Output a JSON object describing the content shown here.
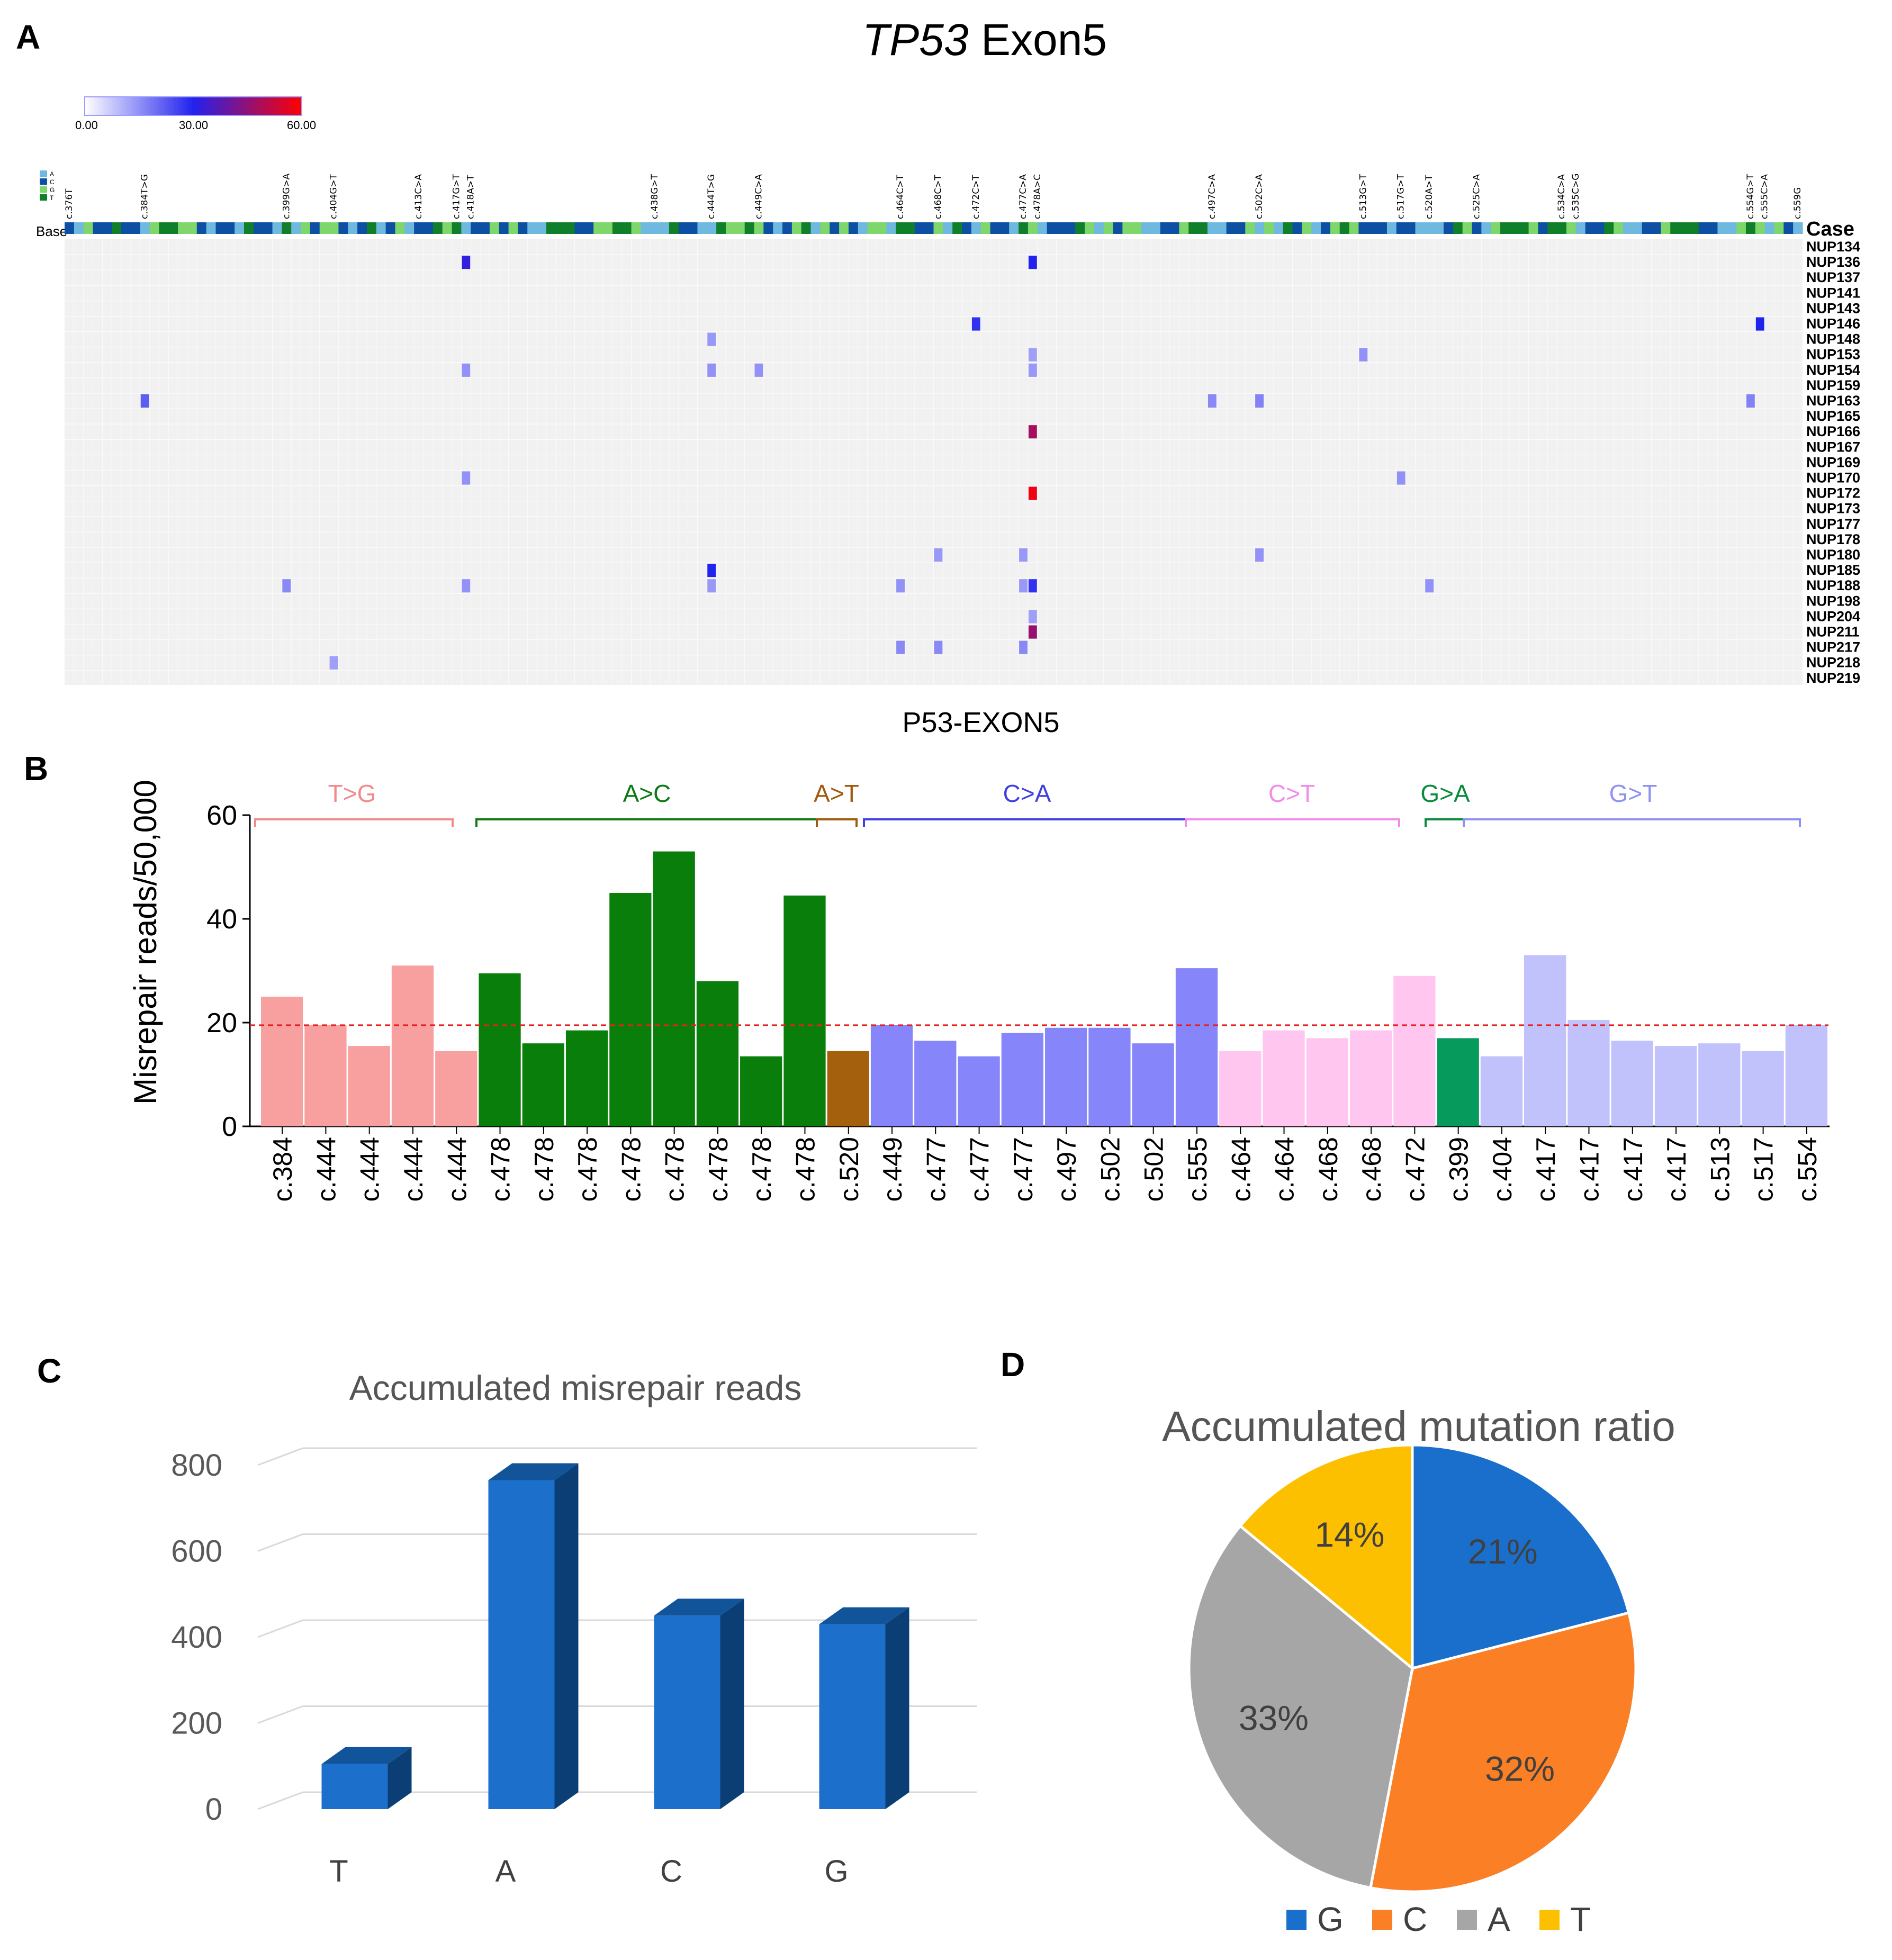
{
  "panels": {
    "A": {
      "letter": "A",
      "title_gene": "TP53",
      "title_rest": " Exon5",
      "xlabel": "P53-EXON5",
      "colorbar": {
        "min_label": "0.00",
        "mid_label": "30.00",
        "max_label": "60.00",
        "colors": [
          "#ffffff",
          "#2222ee",
          "#ff0000"
        ]
      },
      "base_legend": [
        {
          "label": "A",
          "color": "#6fb8df"
        },
        {
          "label": "C",
          "color": "#0d4fa3"
        },
        {
          "label": "G",
          "color": "#7fd66a"
        },
        {
          "label": "T",
          "color": "#0f7f2a"
        }
      ],
      "base_row_label": "Base",
      "case_header": "Case",
      "mutation_labels": [
        "c.376T",
        "c.384T>G",
        "c.399G>A",
        "c.404G>T",
        "c.413C>A",
        "c.417G>T",
        "c.418A>T",
        "c.438G>T",
        "c.444T>G",
        "c.449C>A",
        "c.464C>T",
        "c.468C>T",
        "c.472C>T",
        "c.477C>A",
        "c.478A>C",
        "c.497C>A",
        "c.502C>A",
        "c.513G>T",
        "c.517G>T",
        "c.520A>T",
        "c.525C>A",
        "c.534C>A",
        "c.535C>G",
        "c.554G>T",
        "c.555C>A",
        "c.559G"
      ],
      "cases": [
        "NUP134",
        "NUP136",
        "NUP137",
        "NUP141",
        "NUP143",
        "NUP146",
        "NUP148",
        "NUP153",
        "NUP154",
        "NUP159",
        "NUP163",
        "NUP165",
        "NUP166",
        "NUP167",
        "NUP169",
        "NUP170",
        "NUP172",
        "NUP173",
        "NUP177",
        "NUP178",
        "NUP180",
        "NUP185",
        "NUP188",
        "NUP198",
        "NUP204",
        "NUP211",
        "NUP217",
        "NUP218",
        "NUP219"
      ],
      "base_sequence": "CAGCCTCCAGTTGGCACCATCCATAGCGGCACTACGACCTGTACCGCGCAATTTCCGGTTGAAATCCAATGGTGCACGTAGCGCAGGATTCCGATCAGCCATGACCCTGAGCGGAACCGTTAACCGAGATCGACGTGCCCACCAAACTGCAGTTTGCTTGACCTGAACCGTTTCCAAGTGAG",
      "cells": [
        {
          "case": "NUP136",
          "pos": 418,
          "value": 32
        },
        {
          "case": "NUP136",
          "pos": 478,
          "value": 30
        },
        {
          "case": "NUP146",
          "pos": 472,
          "value": 28
        },
        {
          "case": "NUP146",
          "pos": 555,
          "value": 30
        },
        {
          "case": "NUP148",
          "pos": 444,
          "value": 14
        },
        {
          "case": "NUP153",
          "pos": 478,
          "value": 13
        },
        {
          "case": "NUP153",
          "pos": 513,
          "value": 15
        },
        {
          "case": "NUP154",
          "pos": 418,
          "value": 15
        },
        {
          "case": "NUP154",
          "pos": 444,
          "value": 15
        },
        {
          "case": "NUP154",
          "pos": 449,
          "value": 15
        },
        {
          "case": "NUP154",
          "pos": 478,
          "value": 14
        },
        {
          "case": "NUP163",
          "pos": 384,
          "value": 22
        },
        {
          "case": "NUP163",
          "pos": 497,
          "value": 16
        },
        {
          "case": "NUP163",
          "pos": 502,
          "value": 17
        },
        {
          "case": "NUP163",
          "pos": 554,
          "value": 17
        },
        {
          "case": "NUP166",
          "pos": 478,
          "value": 48
        },
        {
          "case": "NUP170",
          "pos": 418,
          "value": 15
        },
        {
          "case": "NUP170",
          "pos": 517,
          "value": 15
        },
        {
          "case": "NUP172",
          "pos": 478,
          "value": 58
        },
        {
          "case": "NUP180",
          "pos": 468,
          "value": 14
        },
        {
          "case": "NUP180",
          "pos": 477,
          "value": 14
        },
        {
          "case": "NUP180",
          "pos": 502,
          "value": 15
        },
        {
          "case": "NUP185",
          "pos": 444,
          "value": 30
        },
        {
          "case": "NUP188",
          "pos": 399,
          "value": 16
        },
        {
          "case": "NUP188",
          "pos": 418,
          "value": 15
        },
        {
          "case": "NUP188",
          "pos": 444,
          "value": 14
        },
        {
          "case": "NUP188",
          "pos": 464,
          "value": 15
        },
        {
          "case": "NUP188",
          "pos": 477,
          "value": 14
        },
        {
          "case": "NUP188",
          "pos": 478,
          "value": 28
        },
        {
          "case": "NUP188",
          "pos": 520,
          "value": 15
        },
        {
          "case": "NUP204",
          "pos": 478,
          "value": 13
        },
        {
          "case": "NUP211",
          "pos": 478,
          "value": 46
        },
        {
          "case": "NUP217",
          "pos": 464,
          "value": 16
        },
        {
          "case": "NUP217",
          "pos": 468,
          "value": 16
        },
        {
          "case": "NUP217",
          "pos": 477,
          "value": 16
        },
        {
          "case": "NUP218",
          "pos": 404,
          "value": 13
        }
      ]
    },
    "B": {
      "letter": "B",
      "title": "P53-EXON5",
      "ylabel": "Misrepair reads/50,000",
      "ylim": [
        0,
        60
      ],
      "yticks": [
        "0",
        "20",
        "40",
        "60"
      ],
      "reference_line": 19.5,
      "groups": [
        {
          "label": "T>G",
          "color": "#f28a8a",
          "bar": "#f8a0a0",
          "start": 0,
          "end": 4
        },
        {
          "label": "A>C",
          "color": "#0d7a13",
          "bar": "#0a7e0a",
          "start": 5,
          "end": 12
        },
        {
          "label": "A>T",
          "color": "#a05b10",
          "bar": "#a5600d",
          "start": 13,
          "end": 13
        },
        {
          "label": "C>A",
          "color": "#4040e0",
          "bar": "#8686fa",
          "start": 14,
          "end": 21
        },
        {
          "label": "C>T",
          "color": "#f28ce8",
          "bar": "#ffc6f0",
          "start": 22,
          "end": 26
        },
        {
          "label": "G>A",
          "color": "#0a8a3a",
          "bar": "#069a5c",
          "start": 27,
          "end": 27
        },
        {
          "label": "G>T",
          "color": "#8f92f0",
          "bar": "#c1c1fb",
          "start": 28,
          "end": 35
        }
      ],
      "chart_data": {
        "type": "bar",
        "title": "P53-EXON5",
        "ylabel": "Misrepair reads/50,000",
        "xlabel": "",
        "ylim": [
          0,
          60
        ],
        "categories": [
          "c.384",
          "c.444",
          "c.444",
          "c.444",
          "c.444",
          "c.478",
          "c.478",
          "c.478",
          "c.478",
          "c.478",
          "c.478",
          "c.478",
          "c.478",
          "c.520",
          "c.449",
          "c.477",
          "c.477",
          "c.477",
          "c.497",
          "c.502",
          "c.502",
          "c.555",
          "c.464",
          "c.464",
          "c.468",
          "c.468",
          "c.472",
          "c.399",
          "c.404",
          "c.417",
          "c.417",
          "c.417",
          "c.417",
          "c.513",
          "c.517",
          "c.554"
        ],
        "values": [
          25,
          19.5,
          15.5,
          31,
          14.5,
          29.5,
          16,
          18.5,
          45,
          53,
          28,
          13.5,
          44.5,
          14.5,
          19.5,
          16.5,
          13.5,
          18,
          19,
          19,
          16,
          30.5,
          14.5,
          18.5,
          17,
          18.5,
          29,
          17,
          13.5,
          33,
          20.5,
          16.5,
          15.5,
          16,
          14.5,
          19.5
        ]
      }
    },
    "C": {
      "letter": "C",
      "chart_data": {
        "type": "bar",
        "title": "Accumulated misrepair reads",
        "categories": [
          "T",
          "A",
          "C",
          "G"
        ],
        "values": [
          105,
          765,
          450,
          430
        ],
        "ylim": [
          0,
          800
        ],
        "yticks": [
          "0",
          "200",
          "400",
          "600",
          "800"
        ],
        "color": "#1c6fca",
        "color_side": "#0a3e75",
        "color_top": "#11549a"
      }
    },
    "D": {
      "letter": "D",
      "chart_data": {
        "type": "pie",
        "title": "Accumulated mutation ratio",
        "slices": [
          {
            "label": "G",
            "value": 21,
            "text": "21%",
            "color": "#1a6fcc"
          },
          {
            "label": "C",
            "value": 32,
            "text": "32%",
            "color": "#fb7f25"
          },
          {
            "label": "A",
            "value": 33,
            "text": "33%",
            "color": "#a6a6a6"
          },
          {
            "label": "T",
            "value": 14,
            "text": "14%",
            "color": "#fdc001"
          }
        ],
        "legend": [
          "G",
          "C",
          "A",
          "T"
        ],
        "legend_position": "bottom"
      }
    }
  }
}
